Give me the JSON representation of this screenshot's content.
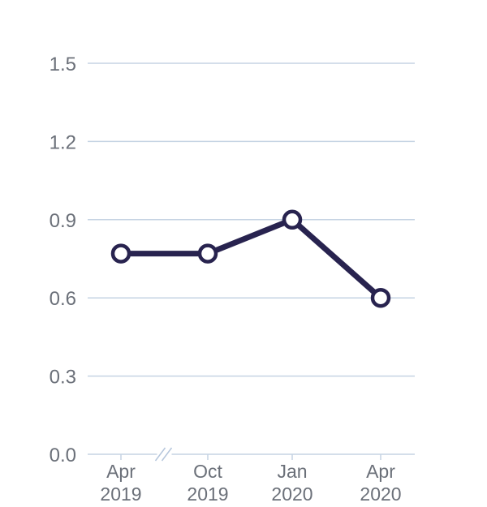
{
  "chart_data": {
    "type": "line",
    "title": "",
    "xlabel": "",
    "ylabel": "",
    "categories": [
      {
        "line1": "Apr",
        "line2": "2019"
      },
      {
        "line1": "Oct",
        "line2": "2019"
      },
      {
        "line1": "Jan",
        "line2": "2020"
      },
      {
        "line1": "Apr",
        "line2": "2020"
      }
    ],
    "values": [
      0.77,
      0.77,
      0.9,
      0.6
    ],
    "ylim": [
      0,
      1.5
    ],
    "yticks": [
      "0.0",
      "0.3",
      "0.6",
      "0.9",
      "1.2",
      "1.5"
    ],
    "axis_break_between": [
      0,
      1
    ],
    "grid": true,
    "colors": {
      "line": "#28234f",
      "marker_fill": "#ffffff",
      "grid": "#c5d3e3",
      "axis": "#c5d3e3",
      "tick_text": "#6b7079",
      "break_mark": "#b5c6dc"
    }
  }
}
